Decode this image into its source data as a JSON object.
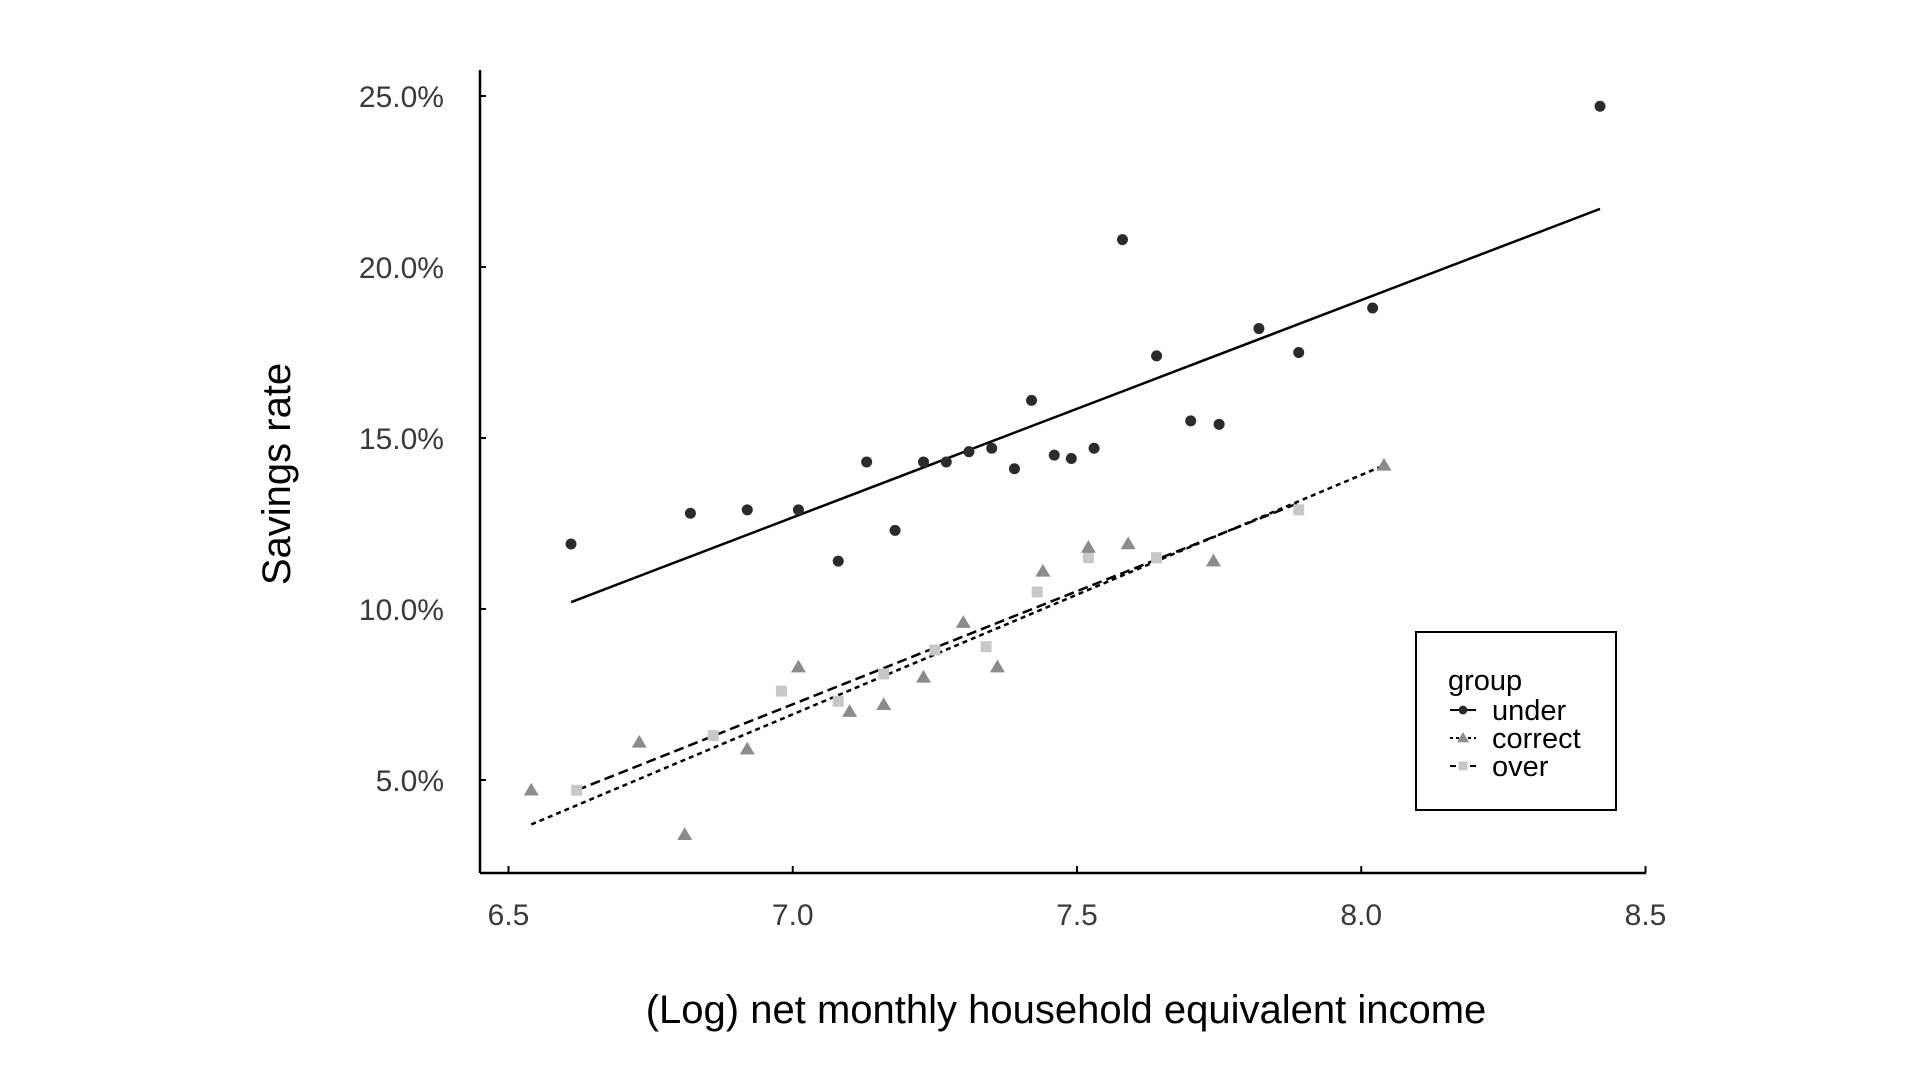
{
  "chart_data": {
    "type": "scatter",
    "title": "",
    "xlabel": "(Log) net monthly household equivalent income",
    "ylabel": "Savings rate",
    "xlim": [
      6.45,
      8.5
    ],
    "ylim": [
      2.5,
      26.0
    ],
    "x_ticks": [
      6.5,
      7.0,
      7.5,
      8.0,
      8.5
    ],
    "x_tick_labels": [
      "6.5",
      "7.0",
      "7.5",
      "8.0",
      "8.5"
    ],
    "y_ticks": [
      5,
      10,
      15,
      20,
      25
    ],
    "y_tick_labels": [
      "5.0%",
      "10.0%",
      "15.0%",
      "20.0%",
      "25.0%"
    ],
    "grid": false,
    "legend": {
      "title": "group",
      "position": "lower-right",
      "entries": [
        "under",
        "correct",
        "over"
      ]
    },
    "series": [
      {
        "name": "under",
        "marker": "circle",
        "color": "#2b2b2b",
        "line_style": "solid",
        "x": [
          6.61,
          6.82,
          6.92,
          7.01,
          7.08,
          7.13,
          7.18,
          7.23,
          7.27,
          7.31,
          7.35,
          7.39,
          7.42,
          7.46,
          7.49,
          7.53,
          7.58,
          7.64,
          7.7,
          7.75,
          7.82,
          7.89,
          8.02,
          8.42
        ],
        "y": [
          11.9,
          12.8,
          12.9,
          12.9,
          11.4,
          14.3,
          12.3,
          14.3,
          14.3,
          14.6,
          14.7,
          14.1,
          16.1,
          14.5,
          14.4,
          14.7,
          20.8,
          17.4,
          15.5,
          15.4,
          18.2,
          17.5,
          18.8,
          24.7
        ],
        "fit_line": {
          "x": [
            6.61,
            8.42
          ],
          "y": [
            10.2,
            21.7
          ]
        }
      },
      {
        "name": "correct",
        "marker": "triangle",
        "color": "#8c8c8c",
        "line_style": "dotted",
        "x": [
          6.54,
          6.73,
          6.81,
          6.92,
          7.01,
          7.1,
          7.16,
          7.23,
          7.3,
          7.36,
          7.44,
          7.52,
          7.59,
          7.74,
          8.04
        ],
        "y": [
          4.7,
          6.1,
          3.4,
          5.9,
          8.3,
          7.0,
          7.2,
          8.0,
          9.6,
          8.3,
          11.1,
          11.8,
          11.9,
          11.4,
          14.2
        ],
        "fit_line": {
          "x": [
            6.54,
            8.04
          ],
          "y": [
            3.7,
            14.2
          ]
        }
      },
      {
        "name": "over",
        "marker": "square",
        "color": "#c8c8c8",
        "line_style": "dashed",
        "x": [
          6.62,
          6.86,
          6.98,
          7.08,
          7.16,
          7.25,
          7.34,
          7.43,
          7.52,
          7.64,
          7.89
        ],
        "y": [
          4.7,
          6.3,
          7.6,
          7.3,
          8.1,
          8.8,
          8.9,
          10.5,
          11.5,
          11.5,
          12.9
        ],
        "fit_line": {
          "x": [
            6.62,
            7.89
          ],
          "y": [
            4.7,
            13.1
          ]
        }
      }
    ]
  }
}
